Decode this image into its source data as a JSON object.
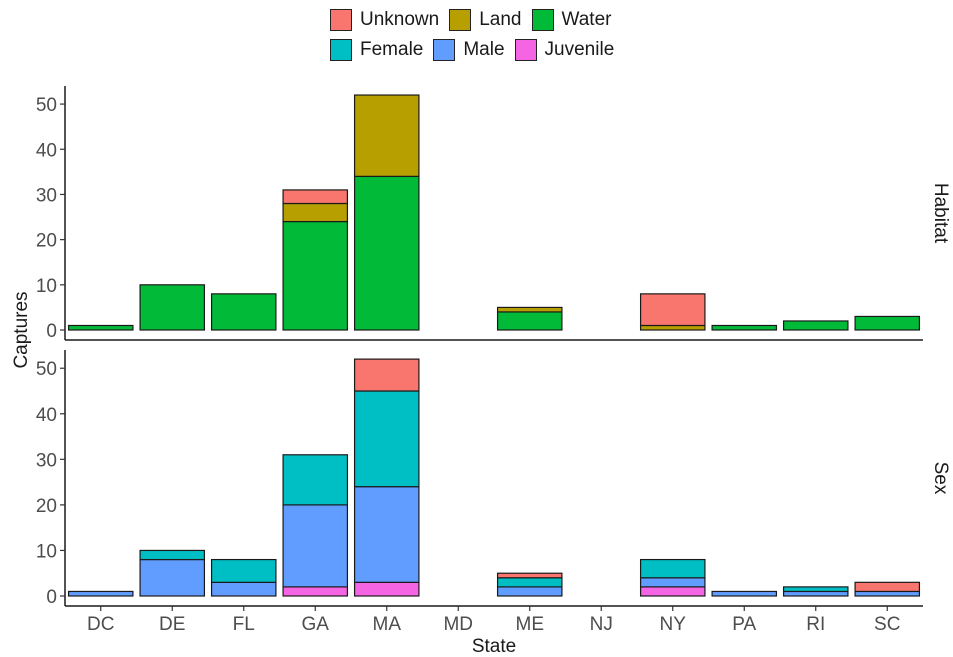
{
  "chart_data": {
    "type": "bar",
    "stacked": true,
    "facet_orientation": "rows",
    "categories": [
      "DC",
      "DE",
      "FL",
      "GA",
      "MA",
      "MD",
      "ME",
      "NJ",
      "NY",
      "PA",
      "RI",
      "SC"
    ],
    "xlabel": "State",
    "ylabel": "Captures",
    "ylim": [
      0,
      54
    ],
    "yticks": [
      0,
      10,
      20,
      30,
      40,
      50
    ],
    "grid": false,
    "legend_position": "top",
    "legend": [
      [
        "Unknown",
        "Land",
        "Water"
      ],
      [
        "Female",
        "Male",
        "Juvenile"
      ]
    ],
    "colors": {
      "Unknown": "#F8766D",
      "Land": "#B79F00",
      "Water": "#00BA38",
      "Female": "#00BFC4",
      "Male": "#619CFF",
      "Juvenile": "#F564E3"
    },
    "panels": [
      {
        "strip": "Habitat",
        "series": [
          {
            "name": "Water",
            "values": [
              1,
              10,
              8,
              24,
              34,
              0,
              4,
              0,
              0,
              1,
              2,
              3
            ]
          },
          {
            "name": "Land",
            "values": [
              0,
              0,
              0,
              4,
              18,
              0,
              1,
              0,
              1,
              0,
              0,
              0
            ]
          },
          {
            "name": "Unknown",
            "values": [
              0,
              0,
              0,
              3,
              0,
              0,
              0,
              0,
              7,
              0,
              0,
              0
            ]
          }
        ]
      },
      {
        "strip": "Sex",
        "series": [
          {
            "name": "Juvenile",
            "values": [
              0,
              0,
              0,
              2,
              3,
              0,
              0,
              0,
              2,
              0,
              0,
              0
            ]
          },
          {
            "name": "Male",
            "values": [
              1,
              8,
              3,
              18,
              21,
              0,
              2,
              0,
              2,
              1,
              1,
              1
            ]
          },
          {
            "name": "Female",
            "values": [
              0,
              2,
              5,
              11,
              21,
              0,
              2,
              0,
              4,
              0,
              1,
              0
            ]
          },
          {
            "name": "Unknown",
            "values": [
              0,
              0,
              0,
              0,
              7,
              0,
              1,
              0,
              0,
              0,
              0,
              2
            ]
          }
        ]
      }
    ]
  }
}
